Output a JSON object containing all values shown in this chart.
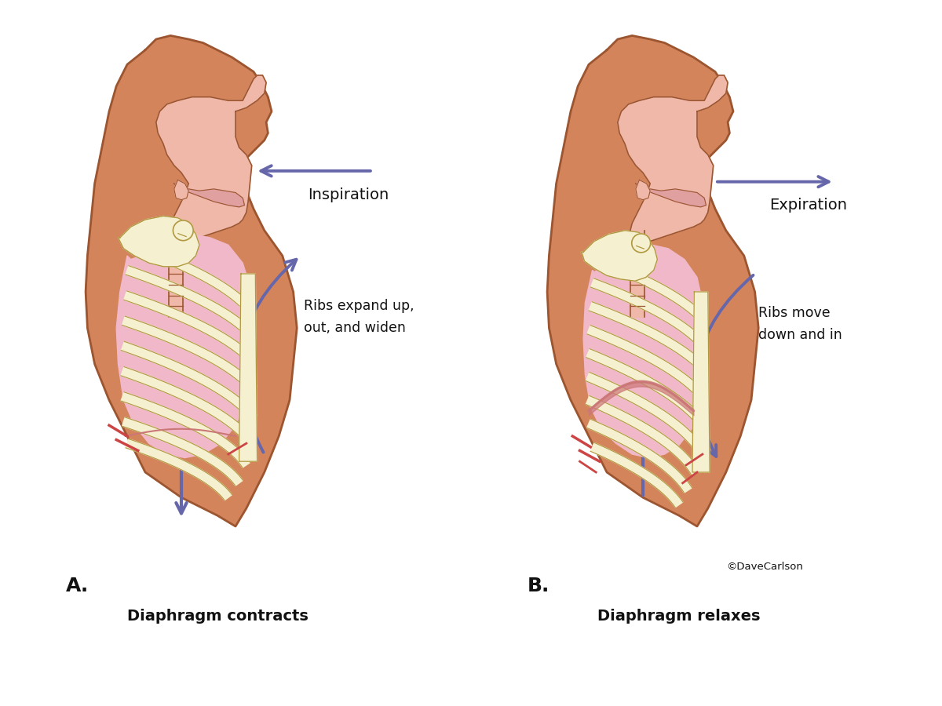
{
  "bg_color": "#ffffff",
  "skin_color": "#d4845a",
  "skin_outline": "#9b5530",
  "skin_inner_color": "#f0b8a8",
  "lung_color": "#f0b8c8",
  "bone_color": "#f5f0d0",
  "bone_outline": "#c8b460",
  "bone_dark": "#b09840",
  "arrow_color": "#6666aa",
  "red_vessel": "#cc4444",
  "text_color": "#111111",
  "diaphragm_color": "#cc7777",
  "label_A": "A.",
  "label_B": "B.",
  "title_left": "Diaphragm contracts",
  "title_right": "Diaphragm relaxes",
  "inspiration_label": "Inspiration",
  "expiration_label": "Expiration",
  "ribs_expand_line1": "Ribs expand up,",
  "ribs_expand_line2": "out, and widen",
  "ribs_move_line1": "Ribs move",
  "ribs_move_line2": "down and in",
  "copyright": "©DaveCarlson",
  "figsize": [
    12.0,
    9.0
  ],
  "dpi": 100
}
